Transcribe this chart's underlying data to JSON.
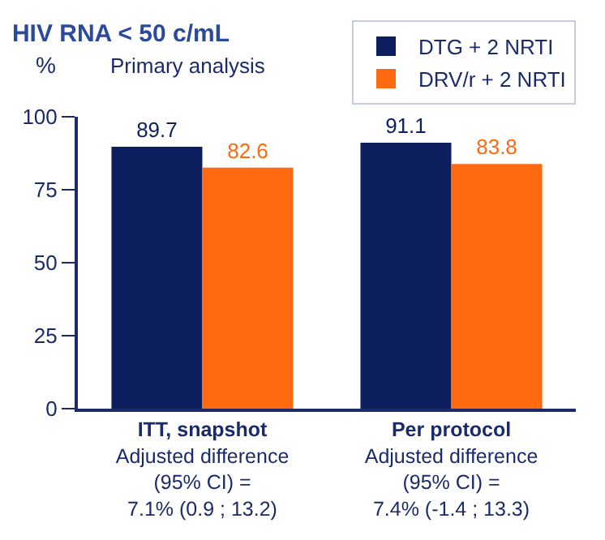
{
  "chart_data": {
    "type": "bar",
    "title": "HIV RNA < 50 c/mL",
    "subtitle": "Primary analysis",
    "ylabel": "%",
    "categories": [
      "ITT, snapshot\nAdjusted difference\n(95% CI) =\n7.1% (0.9 ; 13.2)",
      "Per protocol\nAdjusted difference\n(95% CI) =\n7.4% (-1.4 ; 13.3)"
    ],
    "series": [
      {
        "name": "DTG + 2 NRTI",
        "color": "#0d1f5e",
        "values": [
          89.7,
          91.1
        ]
      },
      {
        "name": "DRV/r + 2 NRTI",
        "color": "#ff6a10",
        "values": [
          82.6,
          83.8
        ]
      }
    ],
    "ylim": [
      0,
      100
    ],
    "yticks": [
      0,
      25,
      50,
      75,
      100
    ],
    "legend": "top right",
    "data_labels": true
  }
}
